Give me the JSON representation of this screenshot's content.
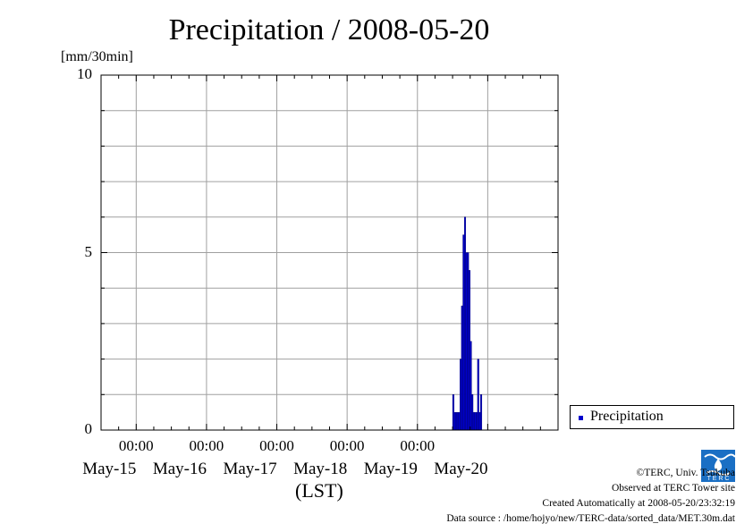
{
  "title": "Precipitation / 2008-05-20",
  "y_unit": "[mm/30min]",
  "x_axis_label": "(LST)",
  "y_ticks": [
    "10",
    "5",
    "0"
  ],
  "x_time_labels": [
    "00:00",
    "00:00",
    "00:00",
    "00:00",
    "00:00"
  ],
  "x_date_labels": [
    "May-15",
    "May-16",
    "May-17",
    "May-18",
    "May-19",
    "May-20"
  ],
  "legend": {
    "label": "Precipitation"
  },
  "credits": {
    "copyright": "©TERC, Univ. Tsukuba",
    "site": "Observed at TERC Tower site",
    "created": "Created Automatically at 2008-05-20/23:32:19",
    "source": "Data source : /home/hojyo/new/TERC-data/sorted_data/MET.30m.dat"
  },
  "colors": {
    "bar": "#0000cc",
    "grid": "#a0a0a0"
  },
  "chart_data": {
    "type": "bar",
    "title": "Precipitation / 2008-05-20",
    "ylabel": "[mm/30min]",
    "xlabel": "(LST)",
    "ylim": [
      0,
      10
    ],
    "y_ticks": [
      0,
      5,
      10
    ],
    "grid": true,
    "legend_position": "right",
    "x_start": "2008-05-14 12:00",
    "x_end": "2008-05-20 24:00",
    "interval": "30min",
    "series": [
      {
        "name": "Precipitation",
        "color": "#0000cc",
        "x": [
          "2008-05-19 12:00",
          "2008-05-19 12:30",
          "2008-05-19 13:00",
          "2008-05-19 13:30",
          "2008-05-19 14:00",
          "2008-05-19 14:30",
          "2008-05-19 15:00",
          "2008-05-19 15:30",
          "2008-05-19 16:00",
          "2008-05-19 16:30",
          "2008-05-19 17:00",
          "2008-05-19 17:30",
          "2008-05-19 18:00",
          "2008-05-19 18:30",
          "2008-05-19 19:00",
          "2008-05-19 19:30",
          "2008-05-19 20:00",
          "2008-05-19 20:30",
          "2008-05-19 21:00",
          "2008-05-19 21:30"
        ],
        "values": [
          1.0,
          0.5,
          0.5,
          0.5,
          0.5,
          2.0,
          3.5,
          5.5,
          6.0,
          5.0,
          5.0,
          4.5,
          2.5,
          1.0,
          0.5,
          0.5,
          0.5,
          2.0,
          0.5,
          1.0
        ]
      }
    ]
  }
}
